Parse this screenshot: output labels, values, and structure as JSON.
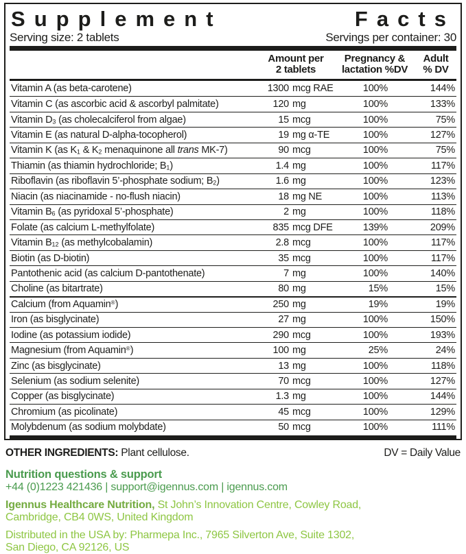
{
  "colors": {
    "ink": "#1d1d1b",
    "green_dark": "#4a9b4e",
    "green_mid": "#74ab40",
    "green_light": "#8ec643"
  },
  "label": {
    "title_left": "Supplement",
    "title_right": "Facts",
    "serving_size": "Serving size: 2 tablets",
    "servings_per_container": "Servings per container: 30"
  },
  "table": {
    "headers": {
      "amount_line1": "Amount per",
      "amount_line2": "2 tablets",
      "pregnancy_line1": "Pregnancy &",
      "pregnancy_line2": "lactation %DV",
      "adult_line1": "Adult",
      "adult_line2": "% DV"
    },
    "rows": [
      {
        "name": "Vitamin A (as beta-carotene)",
        "value": "1300",
        "unit": "mcg RAE",
        "pregnancy": "100%",
        "adult": "144%"
      },
      {
        "name": "Vitamin C (as ascorbic acid & ascorbyl palmitate)",
        "value": "120",
        "unit": "mg",
        "pregnancy": "100%",
        "adult": "133%"
      },
      {
        "name_parts": [
          "Vitamin D",
          {
            "t": "3",
            "s": "sub"
          },
          " (as cholecalciferol from algae)"
        ],
        "value": "15",
        "unit": "mcg",
        "pregnancy": "100%",
        "adult": "75%"
      },
      {
        "name": "Vitamin E (as natural D-alpha-tocopherol)",
        "value": "19",
        "unit": "mg α-TE",
        "pregnancy": "100%",
        "adult": "127%"
      },
      {
        "name_parts": [
          "Vitamin K (as K",
          {
            "t": "1",
            "s": "sub"
          },
          " & K",
          {
            "t": "2",
            "s": "sub"
          },
          " menaquinone all ",
          {
            "t": "trans",
            "s": "i"
          },
          " MK-7)"
        ],
        "value": "90",
        "unit": "mcg",
        "pregnancy": "100%",
        "adult": "75%"
      },
      {
        "name_parts": [
          "Thiamin (as thiamin hydrochloride; B",
          {
            "t": "1",
            "s": "sub"
          },
          ")"
        ],
        "value": "1.4",
        "unit": "mg",
        "pregnancy": "100%",
        "adult": "117%"
      },
      {
        "name_parts": [
          "Riboflavin (as riboflavin 5’-phosphate sodium; B",
          {
            "t": "2",
            "s": "sub"
          },
          ")"
        ],
        "value": "1.6",
        "unit": "mg",
        "pregnancy": "100%",
        "adult": "123%"
      },
      {
        "name": "Niacin (as niacinamide - no-flush niacin)",
        "value": "18",
        "unit": "mg NE",
        "pregnancy": "100%",
        "adult": "113%"
      },
      {
        "name_parts": [
          "Vitamin B",
          {
            "t": "6",
            "s": "sub"
          },
          " (as pyridoxal 5’-phosphate)"
        ],
        "value": "2",
        "unit": "mg",
        "pregnancy": "100%",
        "adult": "118%"
      },
      {
        "name": "Folate (as calcium L-methylfolate)",
        "value": "835",
        "unit": "mcg DFE",
        "pregnancy": "139%",
        "adult": "209%"
      },
      {
        "name_parts": [
          "Vitamin B",
          {
            "t": "12",
            "s": "sub"
          },
          " (as methylcobalamin)"
        ],
        "value": "2.8",
        "unit": "mcg",
        "pregnancy": "100%",
        "adult": "117%"
      },
      {
        "name": "Biotin (as D-biotin)",
        "value": "35",
        "unit": "mcg",
        "pregnancy": "100%",
        "adult": "117%"
      },
      {
        "name": "Pantothenic acid (as calcium D-pantothenate)",
        "value": "7",
        "unit": "mg",
        "pregnancy": "100%",
        "adult": "140%"
      },
      {
        "name": "Choline (as bitartrate)",
        "value": "80",
        "unit": "mg",
        "pregnancy": "15%",
        "adult": "15%"
      },
      {
        "name_parts": [
          "Calcium (from Aquamin",
          {
            "t": "®",
            "s": "sup"
          },
          ")"
        ],
        "value": "250",
        "unit": "mg",
        "pregnancy": "19%",
        "adult": "19%",
        "sep": "thick"
      },
      {
        "name": "Iron (as bisglycinate)",
        "value": "27",
        "unit": "mg",
        "pregnancy": "100%",
        "adult": "150%"
      },
      {
        "name": "Iodine (as potassium iodide)",
        "value": "290",
        "unit": "mcg",
        "pregnancy": "100%",
        "adult": "193%"
      },
      {
        "name_parts": [
          "Magnesium (from Aquamin",
          {
            "t": "®",
            "s": "sup"
          },
          ")"
        ],
        "value": "100",
        "unit": "mg",
        "pregnancy": "25%",
        "adult": "24%"
      },
      {
        "name": "Zinc (as bisglycinate)",
        "value": "13",
        "unit": "mg",
        "pregnancy": "100%",
        "adult": "118%"
      },
      {
        "name": "Selenium (as sodium selenite)",
        "value": "70",
        "unit": "mcg",
        "pregnancy": "100%",
        "adult": "127%"
      },
      {
        "name": "Copper (as bisglycinate)",
        "value": "1.3",
        "unit": "mg",
        "pregnancy": "100%",
        "adult": "144%"
      },
      {
        "name": "Chromium (as picolinate)",
        "value": "45",
        "unit": "mcg",
        "pregnancy": "100%",
        "adult": "129%"
      },
      {
        "name": "Molybdenum (as sodium molybdate)",
        "value": "50",
        "unit": "mcg",
        "pregnancy": "100%",
        "adult": "111%"
      }
    ]
  },
  "footnotes": {
    "other_ingredients_label": "OTHER INGREDIENTS:",
    "other_ingredients_value": " Plant cellulose.",
    "dv_note": "DV = Daily Value"
  },
  "contact": {
    "support_heading": "Nutrition questions & support",
    "support_line": "+44 (0)1223 421436 | support@igennus.com | igennus.com",
    "company_name": "Igennus Healthcare Nutrition,",
    "company_address_line1": " St John’s Innovation Centre, Cowley Road,",
    "company_address_line2": "Cambridge, CB4 0WS, United Kingdom",
    "distributor_line1": "Distributed in the USA by: Pharmepa Inc., 7965 Silverton Ave, Suite 1302,",
    "distributor_line2": "San Diego, CA 92126, US"
  }
}
